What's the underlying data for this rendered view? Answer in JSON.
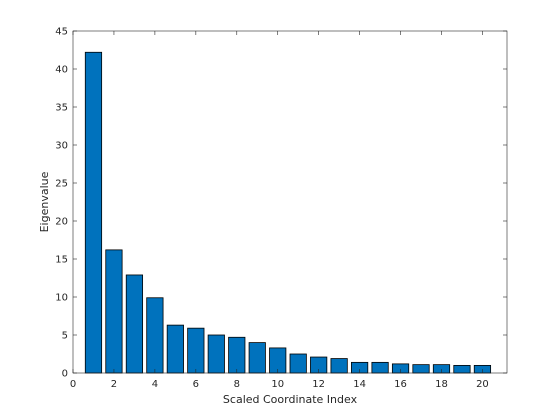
{
  "chart_data": {
    "type": "bar",
    "title": "",
    "xlabel": "Scaled Coordinate Index",
    "ylabel": "Eigenvalue",
    "x": [
      1,
      2,
      3,
      4,
      5,
      6,
      7,
      8,
      9,
      10,
      11,
      12,
      13,
      14,
      15,
      16,
      17,
      18,
      19,
      20
    ],
    "values": [
      42.2,
      16.2,
      12.9,
      9.9,
      6.3,
      5.9,
      5.0,
      4.7,
      4.0,
      3.3,
      2.5,
      2.1,
      1.9,
      1.4,
      1.4,
      1.2,
      1.1,
      1.1,
      1.0,
      1.0
    ],
    "xlim": [
      0,
      21.2
    ],
    "ylim": [
      0,
      45
    ],
    "xticks": [
      0,
      2,
      4,
      6,
      8,
      10,
      12,
      14,
      16,
      18,
      20
    ],
    "yticks": [
      0,
      5,
      10,
      15,
      20,
      25,
      30,
      35,
      40,
      45
    ],
    "grid": false,
    "legend": "none",
    "colors": {
      "bar": "#0072BD",
      "edge": "#000000",
      "axis": "#262626"
    }
  }
}
